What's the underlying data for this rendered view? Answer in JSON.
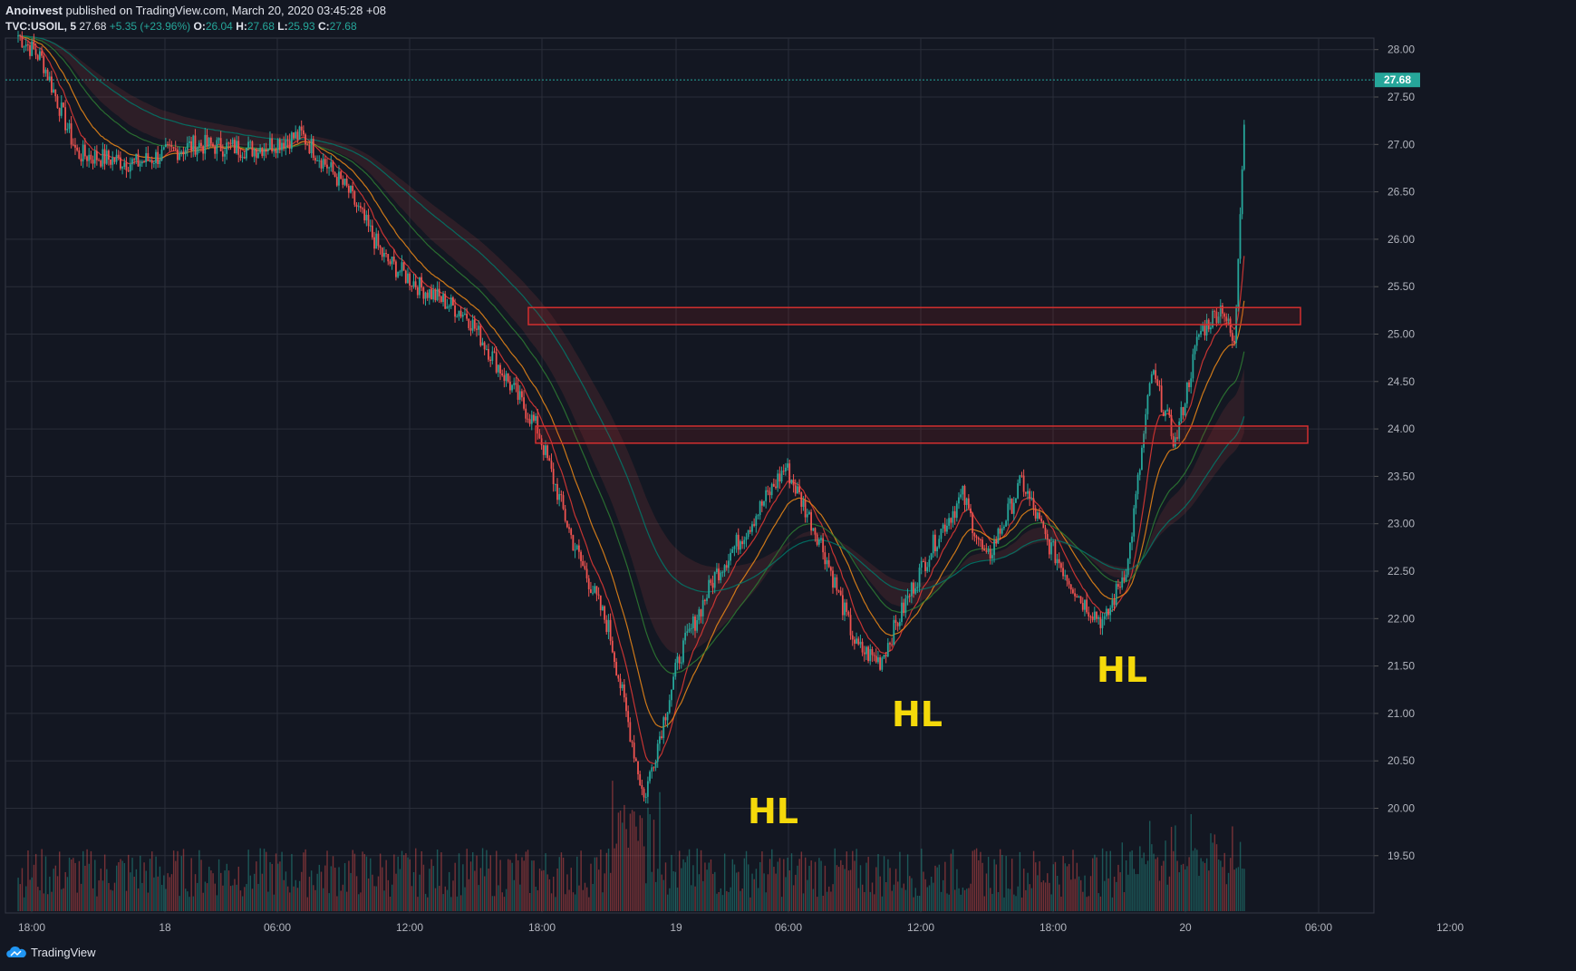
{
  "header": {
    "author": "Anoinvest",
    "published_text": "published on TradingView.com, March 20, 2020 03:45:28 +08"
  },
  "ohlc": {
    "symbol": "TVC:USOIL, 5",
    "last": "27.68",
    "change": "+5.35 (+23.96%)",
    "o_label": "O:",
    "o": "26.04",
    "h_label": "H:",
    "h": "27.68",
    "l_label": "L:",
    "l": "25.93",
    "c_label": "C:",
    "c": "27.68"
  },
  "footer": {
    "brand": "TradingView"
  },
  "colors": {
    "background": "#131722",
    "grid": "#2a2e39",
    "up": "#26a69a",
    "down": "#ef5350",
    "zone": "#b22222",
    "label": "#f5d90a"
  },
  "chart_data": {
    "type": "candlestick",
    "symbol": "TVC:USOIL",
    "interval": "5",
    "y_axis": {
      "position": "right",
      "ticks": [
        "28.00",
        "27.50",
        "27.00",
        "26.50",
        "26.00",
        "25.50",
        "25.00",
        "24.50",
        "24.00",
        "23.50",
        "23.00",
        "22.50",
        "22.00",
        "21.50",
        "21.00",
        "20.50",
        "20.00",
        "19.50"
      ],
      "last_price": "27.68",
      "ylim": [
        19.05,
        28.2
      ]
    },
    "x_axis": {
      "ticks": [
        "18:00",
        "18",
        "06:00",
        "12:00",
        "18:00",
        "19",
        "06:00",
        "12:00",
        "18:00",
        "20",
        "06:00",
        "12:00"
      ]
    },
    "grid": true,
    "price_path": [
      [
        0,
        28.15
      ],
      [
        2,
        27.9
      ],
      [
        5,
        26.9
      ],
      [
        10,
        26.8
      ],
      [
        15,
        27.0
      ],
      [
        20,
        26.95
      ],
      [
        24,
        27.1
      ],
      [
        28,
        26.5
      ],
      [
        31,
        25.8
      ],
      [
        34,
        25.5
      ],
      [
        38,
        25.2
      ],
      [
        41,
        24.6
      ],
      [
        44,
        24.0
      ],
      [
        47,
        22.8
      ],
      [
        50,
        21.9
      ],
      [
        53,
        20.1
      ],
      [
        56,
        21.6
      ],
      [
        59,
        22.45
      ],
      [
        62,
        23.0
      ],
      [
        65,
        23.6
      ],
      [
        68,
        22.8
      ],
      [
        71,
        21.7
      ],
      [
        73,
        21.55
      ],
      [
        76,
        22.4
      ],
      [
        78,
        22.9
      ],
      [
        80,
        23.3
      ],
      [
        82,
        22.6
      ],
      [
        85,
        23.45
      ],
      [
        87,
        22.85
      ],
      [
        90,
        22.2
      ],
      [
        92,
        21.95
      ],
      [
        94,
        22.6
      ],
      [
        96,
        24.6
      ],
      [
        98,
        23.85
      ],
      [
        100,
        25.0
      ],
      [
        102,
        25.3
      ],
      [
        103,
        24.85
      ],
      [
        104,
        27.68
      ]
    ],
    "volume_note": "volume histogram at bottom",
    "zones": [
      {
        "low": 25.1,
        "high": 25.28
      },
      {
        "low": 23.85,
        "high": 24.03
      }
    ],
    "annotations": [
      "HL",
      "HL",
      "HL"
    ]
  }
}
